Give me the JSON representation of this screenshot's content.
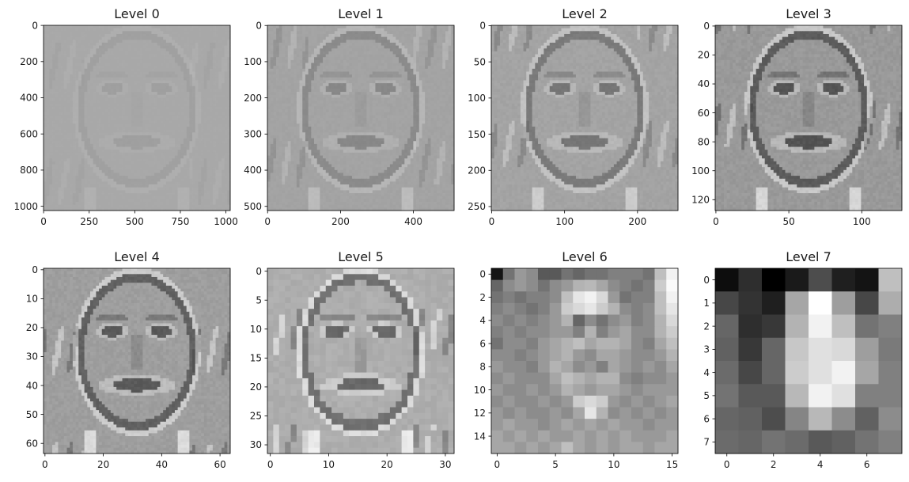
{
  "chart_data": [
    {
      "type": "heatmap",
      "title": "Level 0",
      "grid": false,
      "image_size": [
        1024,
        1024
      ],
      "xticks": [
        0,
        250,
        500,
        750,
        1000
      ],
      "yticks": [
        0,
        200,
        400,
        600,
        800,
        1000
      ],
      "style": "laplacian-face",
      "base_gray": 0.66,
      "contrast": 0.04,
      "cells": 64
    },
    {
      "type": "heatmap",
      "title": "Level 1",
      "grid": false,
      "image_size": [
        512,
        512
      ],
      "xticks": [
        0,
        200,
        400
      ],
      "yticks": [
        0,
        100,
        200,
        300,
        400,
        500
      ],
      "style": "laplacian-face",
      "base_gray": 0.64,
      "contrast": 0.12,
      "cells": 64
    },
    {
      "type": "heatmap",
      "title": "Level 2",
      "grid": false,
      "image_size": [
        256,
        256
      ],
      "xticks": [
        0,
        100,
        200
      ],
      "yticks": [
        0,
        50,
        100,
        150,
        200,
        250
      ],
      "style": "laplacian-face",
      "base_gray": 0.64,
      "contrast": 0.2,
      "cells": 64
    },
    {
      "type": "heatmap",
      "title": "Level 3",
      "grid": false,
      "image_size": [
        128,
        128
      ],
      "xticks": [
        0,
        50,
        100
      ],
      "yticks": [
        0,
        20,
        40,
        60,
        80,
        100,
        120
      ],
      "style": "laplacian-face",
      "base_gray": 0.6,
      "contrast": 0.3,
      "cells": 64
    },
    {
      "type": "heatmap",
      "title": "Level 4",
      "grid": false,
      "image_size": [
        64,
        64
      ],
      "xticks": [
        0,
        20,
        40,
        60
      ],
      "yticks": [
        0,
        10,
        20,
        30,
        40,
        50,
        60
      ],
      "style": "laplacian-face",
      "base_gray": 0.62,
      "contrast": 0.3,
      "cells": 64
    },
    {
      "type": "heatmap",
      "title": "Level 5",
      "grid": false,
      "image_size": [
        32,
        32
      ],
      "xticks": [
        0,
        10,
        20,
        30
      ],
      "yticks": [
        0,
        5,
        10,
        15,
        20,
        25,
        30
      ],
      "style": "laplacian-face",
      "base_gray": 0.68,
      "contrast": 0.3,
      "cells": 32
    },
    {
      "type": "heatmap",
      "title": "Level 6",
      "grid": false,
      "image_size": [
        16,
        16
      ],
      "xticks": [
        0,
        5,
        10,
        15
      ],
      "yticks": [
        0,
        2,
        4,
        6,
        8,
        10,
        12,
        14
      ],
      "style": "matrix",
      "values": [
        [
          0.08,
          0.45,
          0.6,
          0.55,
          0.35,
          0.35,
          0.45,
          0.4,
          0.45,
          0.45,
          0.5,
          0.5,
          0.5,
          0.45,
          0.75,
          0.95
        ],
        [
          0.4,
          0.55,
          0.6,
          0.55,
          0.45,
          0.55,
          0.6,
          0.7,
          0.72,
          0.65,
          0.55,
          0.5,
          0.45,
          0.5,
          0.8,
          0.98
        ],
        [
          0.45,
          0.5,
          0.45,
          0.5,
          0.5,
          0.55,
          0.75,
          0.9,
          0.95,
          0.85,
          0.6,
          0.45,
          0.5,
          0.5,
          0.75,
          0.95
        ],
        [
          0.5,
          0.55,
          0.5,
          0.45,
          0.5,
          0.6,
          0.8,
          0.85,
          0.9,
          0.8,
          0.7,
          0.55,
          0.5,
          0.55,
          0.75,
          0.9
        ],
        [
          0.55,
          0.5,
          0.55,
          0.5,
          0.55,
          0.6,
          0.7,
          0.4,
          0.55,
          0.45,
          0.55,
          0.6,
          0.5,
          0.55,
          0.7,
          0.85
        ],
        [
          0.5,
          0.55,
          0.5,
          0.55,
          0.55,
          0.6,
          0.6,
          0.5,
          0.7,
          0.5,
          0.6,
          0.65,
          0.55,
          0.55,
          0.7,
          0.8
        ],
        [
          0.45,
          0.55,
          0.55,
          0.5,
          0.6,
          0.65,
          0.7,
          0.75,
          0.65,
          0.7,
          0.7,
          0.65,
          0.55,
          0.5,
          0.65,
          0.75
        ],
        [
          0.55,
          0.55,
          0.5,
          0.55,
          0.6,
          0.65,
          0.7,
          0.6,
          0.55,
          0.65,
          0.65,
          0.6,
          0.55,
          0.55,
          0.6,
          0.7
        ],
        [
          0.6,
          0.55,
          0.55,
          0.5,
          0.6,
          0.7,
          0.65,
          0.55,
          0.6,
          0.5,
          0.65,
          0.6,
          0.55,
          0.6,
          0.55,
          0.65
        ],
        [
          0.55,
          0.6,
          0.55,
          0.55,
          0.55,
          0.65,
          0.75,
          0.7,
          0.65,
          0.7,
          0.7,
          0.55,
          0.5,
          0.55,
          0.55,
          0.6
        ],
        [
          0.6,
          0.55,
          0.55,
          0.6,
          0.55,
          0.6,
          0.7,
          0.65,
          0.6,
          0.65,
          0.65,
          0.6,
          0.55,
          0.6,
          0.6,
          0.6
        ],
        [
          0.55,
          0.6,
          0.55,
          0.55,
          0.6,
          0.55,
          0.6,
          0.8,
          0.85,
          0.8,
          0.6,
          0.55,
          0.6,
          0.55,
          0.6,
          0.65
        ],
        [
          0.6,
          0.55,
          0.6,
          0.55,
          0.55,
          0.6,
          0.55,
          0.65,
          0.9,
          0.7,
          0.55,
          0.6,
          0.55,
          0.6,
          0.55,
          0.6
        ],
        [
          0.6,
          0.65,
          0.6,
          0.6,
          0.55,
          0.6,
          0.65,
          0.6,
          0.65,
          0.6,
          0.65,
          0.6,
          0.6,
          0.55,
          0.6,
          0.6
        ],
        [
          0.65,
          0.6,
          0.65,
          0.6,
          0.65,
          0.6,
          0.6,
          0.65,
          0.6,
          0.65,
          0.6,
          0.65,
          0.6,
          0.6,
          0.6,
          0.65
        ],
        [
          0.65,
          0.65,
          0.6,
          0.65,
          0.6,
          0.65,
          0.75,
          0.65,
          0.6,
          0.65,
          0.6,
          0.65,
          0.65,
          0.6,
          0.65,
          0.65
        ]
      ]
    },
    {
      "type": "heatmap",
      "title": "Level 7",
      "grid": false,
      "image_size": [
        8,
        8
      ],
      "xticks": [
        0,
        2,
        4,
        6
      ],
      "yticks": [
        0,
        1,
        2,
        3,
        4,
        5,
        6,
        7
      ],
      "style": "matrix",
      "values": [
        [
          0.05,
          0.18,
          0.0,
          0.1,
          0.3,
          0.12,
          0.08,
          0.75
        ],
        [
          0.28,
          0.2,
          0.12,
          0.65,
          1.0,
          0.62,
          0.28,
          0.68
        ],
        [
          0.4,
          0.18,
          0.22,
          0.7,
          0.95,
          0.75,
          0.45,
          0.5
        ],
        [
          0.38,
          0.22,
          0.4,
          0.78,
          0.88,
          0.85,
          0.62,
          0.48
        ],
        [
          0.42,
          0.28,
          0.4,
          0.8,
          0.88,
          0.95,
          0.65,
          0.5
        ],
        [
          0.45,
          0.35,
          0.35,
          0.72,
          0.95,
          0.88,
          0.5,
          0.5
        ],
        [
          0.4,
          0.38,
          0.3,
          0.52,
          0.72,
          0.55,
          0.38,
          0.55
        ],
        [
          0.42,
          0.4,
          0.45,
          0.42,
          0.35,
          0.38,
          0.45,
          0.5
        ]
      ]
    }
  ]
}
